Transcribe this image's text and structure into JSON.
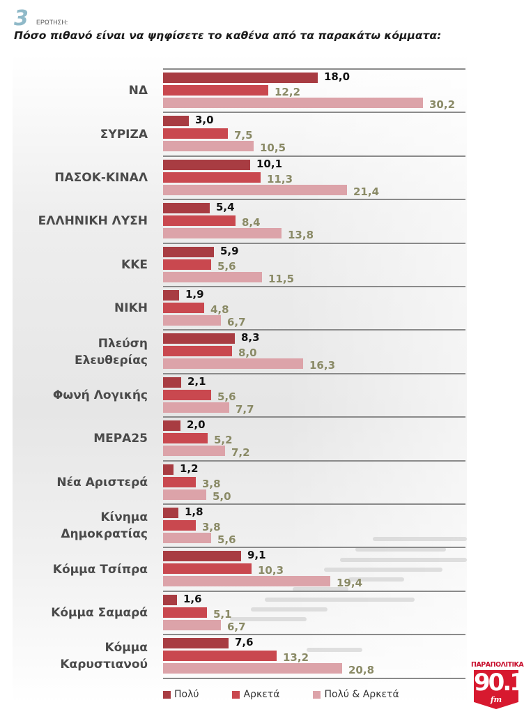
{
  "header": {
    "question_number": "3",
    "question_label": "ΕΡΩΤΗΣΗ:",
    "title": "Πόσο πιθανό είναι να ψηφίσετε το καθένα από τα παρακάτω κόμματα:"
  },
  "colors": {
    "polu": "#a83c42",
    "arketa": "#c9484f",
    "polu_arketa": "#dca3a9",
    "value_dark": "#111111",
    "value_muted": "#8a8a66"
  },
  "legend": [
    {
      "label": "Πολύ",
      "color": "#a83c42"
    },
    {
      "label": "Αρκετά",
      "color": "#c9484f"
    },
    {
      "label": "Πολύ & Αρκετά",
      "color": "#dca3a9"
    }
  ],
  "logo": {
    "brand": "ΠΑΡΑΠΟΛΙΤΙΚΑ",
    "frequency": "90.1",
    "suffix": "fm"
  },
  "chart_data": {
    "type": "bar",
    "orientation": "horizontal",
    "title": "Πόσο πιθανό είναι να ψηφίσετε το καθένα από τα παρακάτω κόμματα:",
    "xlabel": "",
    "ylabel": "",
    "grid": false,
    "legend_position": "bottom",
    "xlim": [
      0,
      35
    ],
    "categories": [
      "ΝΔ",
      "ΣΥΡΙΖΑ",
      "ΠΑΣΟΚ-ΚΙΝΑΛ",
      "ΕΛΛΗΝΙΚΗ ΛΥΣΗ",
      "ΚΚΕ",
      "ΝΙΚΗ",
      "Πλεύση Ελευθερίας",
      "Φωνή Λογικής",
      "ΜΕΡΑ25",
      "Νέα Αριστερά",
      "Κίνημα Δημοκρατίας",
      "Κόμμα Τσίπρα",
      "Κόμμα Σαμαρά",
      "Κόμμα Καρυστιανού"
    ],
    "category_lines": [
      [
        "ΝΔ"
      ],
      [
        "ΣΥΡΙΖΑ"
      ],
      [
        "ΠΑΣΟΚ-ΚΙΝΑΛ"
      ],
      [
        "ΕΛΛΗΝΙΚΗ ΛΥΣΗ"
      ],
      [
        "ΚΚΕ"
      ],
      [
        "ΝΙΚΗ"
      ],
      [
        "Πλεύση",
        "Ελευθερίας"
      ],
      [
        "Φωνή Λογικής"
      ],
      [
        "ΜΕΡΑ25"
      ],
      [
        "Νέα Αριστερά"
      ],
      [
        "Κίνημα",
        "Δημοκρατίας"
      ],
      [
        "Κόμμα Τσίπρα"
      ],
      [
        "Κόμμα Σαμαρά"
      ],
      [
        "Κόμμα",
        "Καρυστιανού"
      ]
    ],
    "series": [
      {
        "name": "Πολύ",
        "values": [
          18.0,
          3.0,
          10.1,
          5.4,
          5.9,
          1.9,
          8.3,
          2.1,
          2.0,
          1.2,
          1.8,
          9.1,
          1.6,
          7.6
        ],
        "labels": [
          "18,0",
          "3,0",
          "10,1",
          "5,4",
          "5,9",
          "1,9",
          "8,3",
          "2,1",
          "2,0",
          "1,2",
          "1,8",
          "9,1",
          "1,6",
          "7,6"
        ]
      },
      {
        "name": "Αρκετά",
        "values": [
          12.2,
          7.5,
          11.3,
          8.4,
          5.6,
          4.8,
          8.0,
          5.6,
          5.2,
          3.8,
          3.8,
          10.3,
          5.1,
          13.2
        ],
        "labels": [
          "12,2",
          "7,5",
          "11,3",
          "8,4",
          "5,6",
          "4,8",
          "8,0",
          "5,6",
          "5,2",
          "3,8",
          "3,8",
          "10,3",
          "5,1",
          "13,2"
        ]
      },
      {
        "name": "Πολύ & Αρκετά",
        "values": [
          30.2,
          10.5,
          21.4,
          13.8,
          11.5,
          6.7,
          16.3,
          7.7,
          7.2,
          5.0,
          5.6,
          19.4,
          6.7,
          20.8
        ],
        "labels": [
          "30,2",
          "10,5",
          "21,4",
          "13,8",
          "11,5",
          "6,7",
          "16,3",
          "7,7",
          "7,2",
          "5,0",
          "5,6",
          "19,4",
          "6,7",
          "20,8"
        ]
      }
    ]
  }
}
